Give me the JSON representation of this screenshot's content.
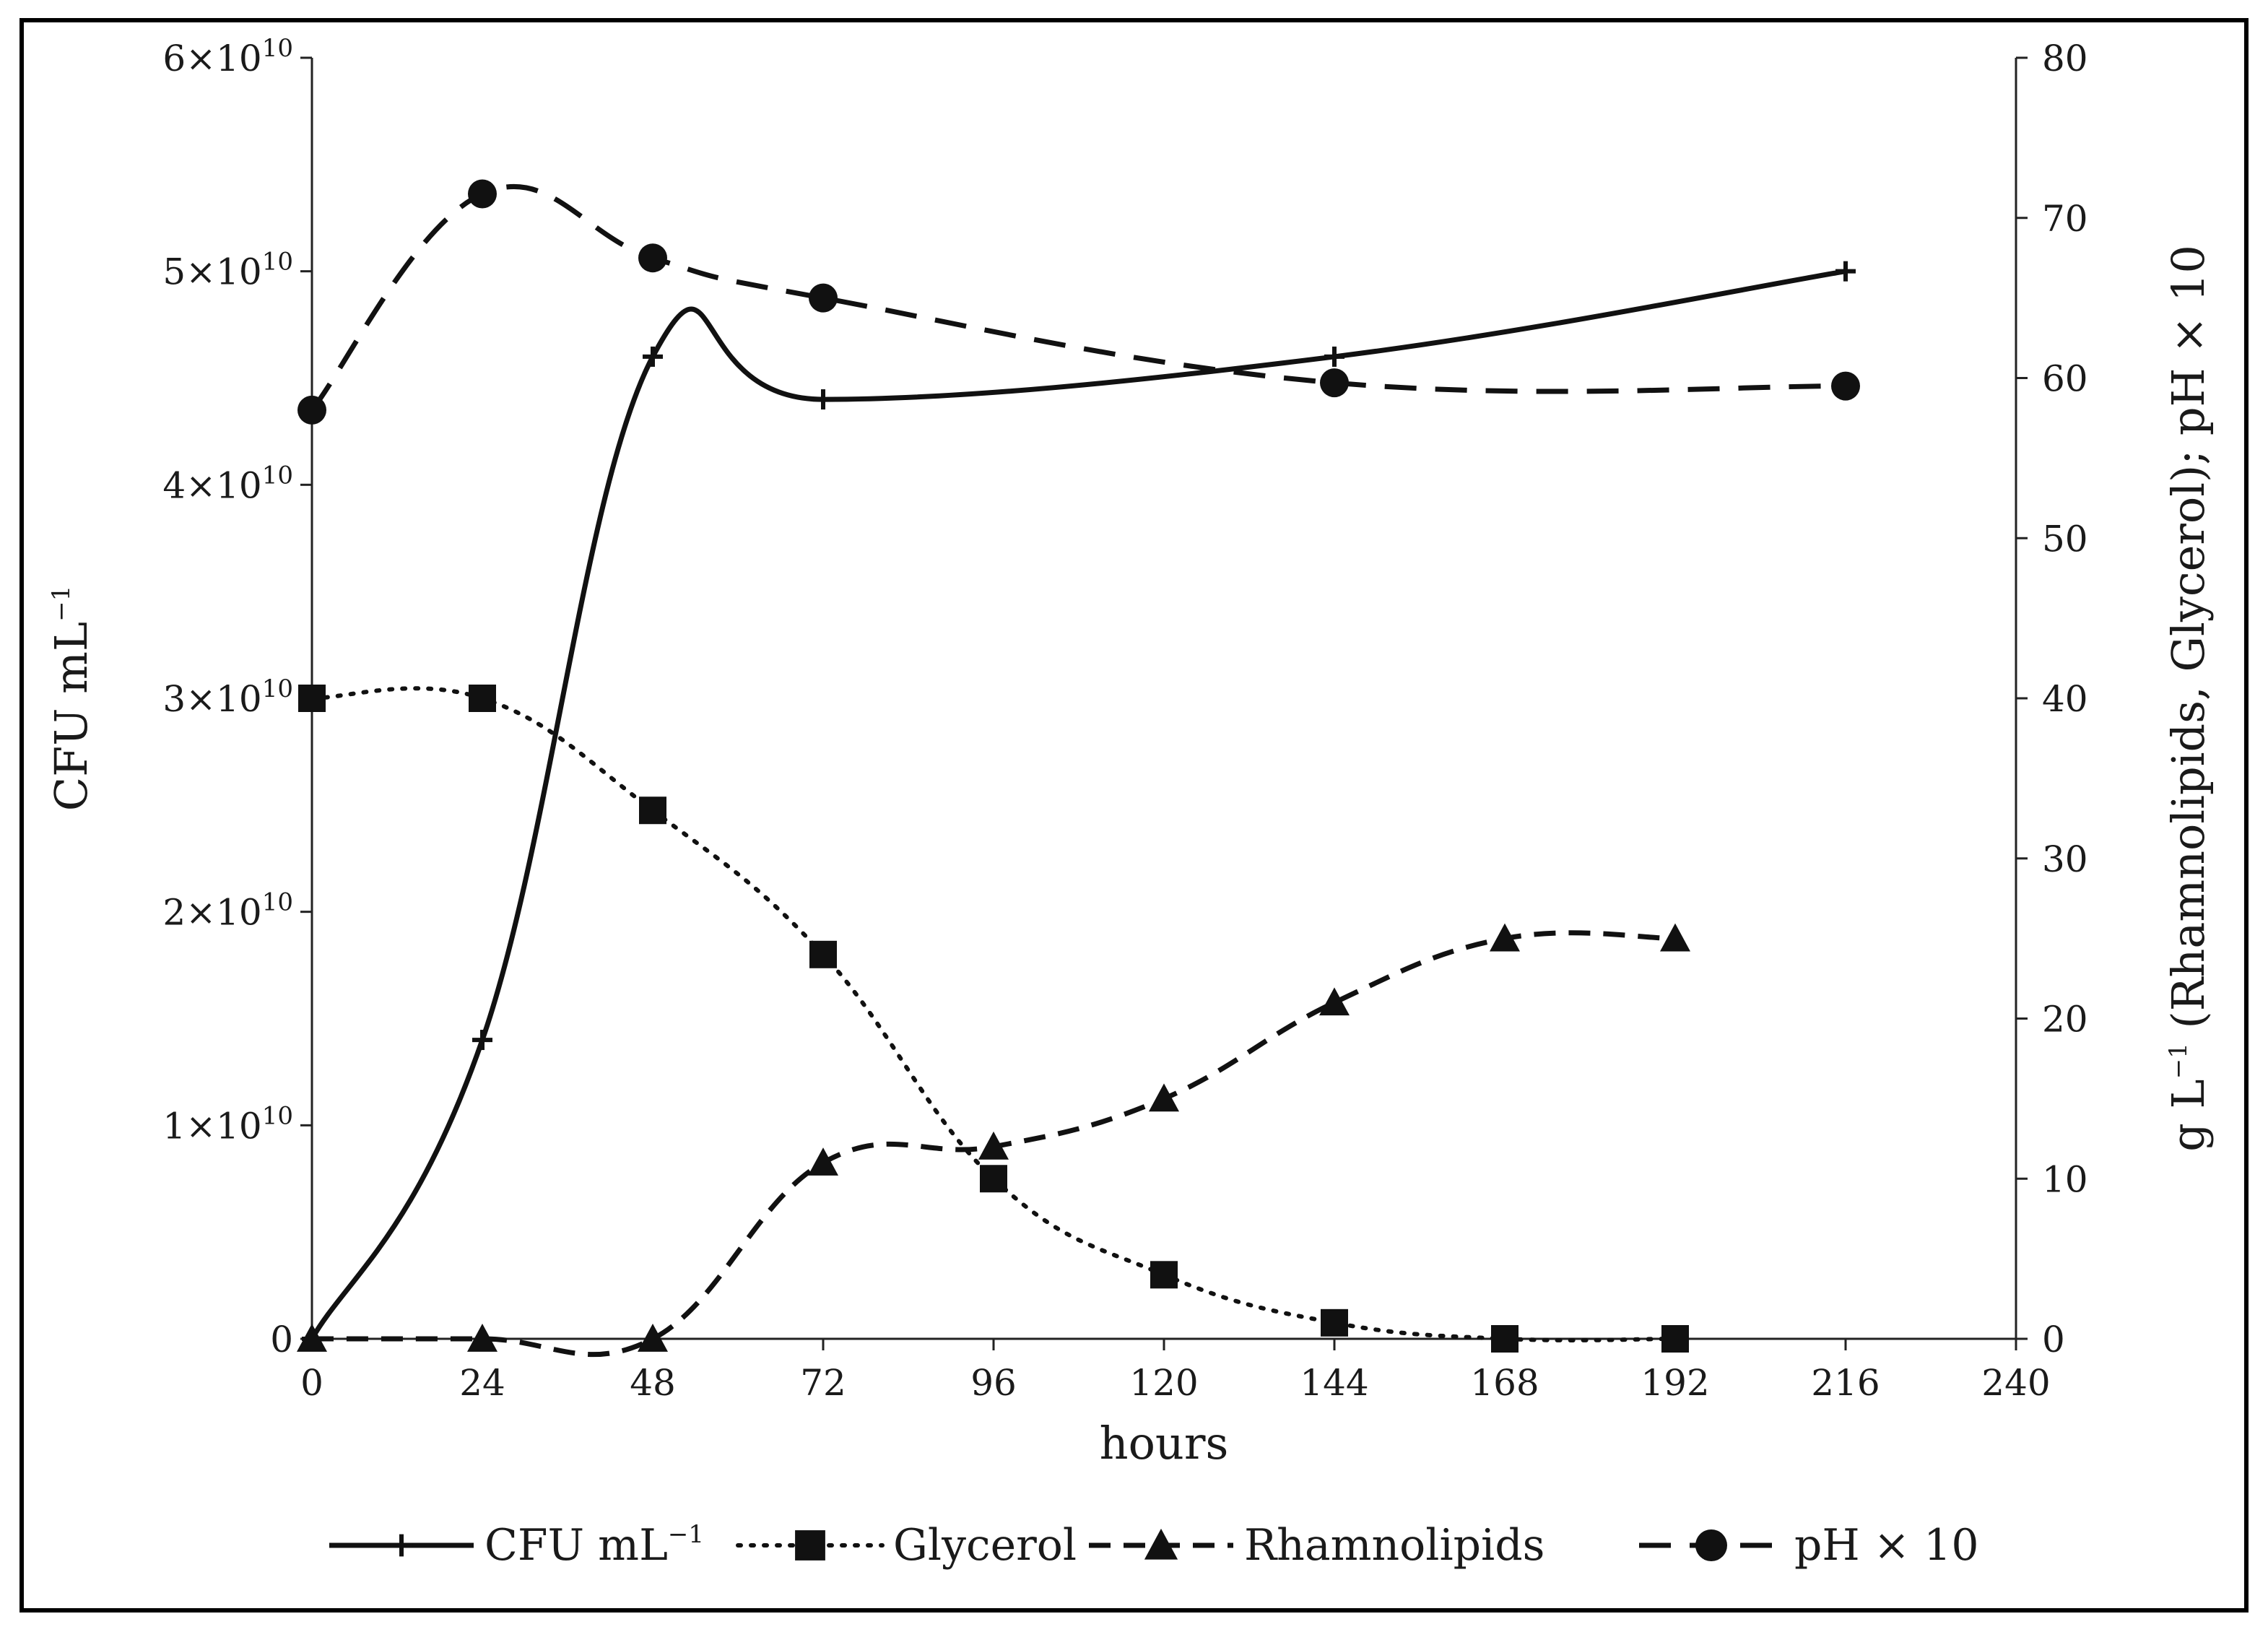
{
  "chart_data": {
    "type": "line",
    "x": [
      0,
      24,
      48,
      72,
      96,
      120,
      144,
      168,
      192,
      216
    ],
    "xlabel": "hours",
    "xlim": [
      0,
      240
    ],
    "xticks": [
      0,
      24,
      48,
      72,
      96,
      120,
      144,
      168,
      192,
      216,
      240
    ],
    "xtick_labels": [
      "0",
      "24",
      "48",
      "72",
      "96",
      "120",
      "144",
      "168",
      "192",
      "216",
      "240"
    ],
    "ylabel_left": "CFU mL",
    "ylabel_left_sup": "−1",
    "ylim_left": [
      0,
      60000000000.0
    ],
    "yticks_left": [
      {
        "mant": "0",
        "exp": ""
      },
      {
        "mant": "1×10",
        "exp": "10"
      },
      {
        "mant": "2×10",
        "exp": "10"
      },
      {
        "mant": "3×10",
        "exp": "10"
      },
      {
        "mant": "4×10",
        "exp": "10"
      },
      {
        "mant": "5×10",
        "exp": "10"
      },
      {
        "mant": "6×10",
        "exp": "10"
      }
    ],
    "ylabel_right_parts": [
      "g L",
      "−1",
      " (Rhamnolipids, Glycerol); pH × 10"
    ],
    "ylim_right": [
      0,
      80
    ],
    "yticks_right": [
      "0",
      "10",
      "20",
      "30",
      "40",
      "50",
      "60",
      "70",
      "80"
    ],
    "series": [
      {
        "name": "CFU mL",
        "name_sup": "−1",
        "axis": "left",
        "marker": "plus",
        "style": "solid",
        "x": [
          0,
          24,
          48,
          72,
          144,
          216
        ],
        "values": [
          0,
          14000000000.0,
          46000000000.0,
          44000000000.0,
          46000000000.0,
          50000000000.0
        ]
      },
      {
        "name": "Glycerol",
        "name_sup": "",
        "axis": "right",
        "marker": "square",
        "style": "dotted",
        "x": [
          0,
          24,
          48,
          72,
          96,
          120,
          144,
          168,
          192
        ],
        "values": [
          40,
          40,
          33,
          24,
          10,
          4,
          1,
          0,
          0
        ]
      },
      {
        "name": "Rhamnolipids",
        "name_sup": "",
        "axis": "right",
        "marker": "triangle",
        "style": "dashed",
        "x": [
          0,
          24,
          48,
          72,
          96,
          120,
          144,
          168,
          192
        ],
        "values": [
          0,
          0,
          0,
          11,
          12,
          15,
          21,
          25,
          25
        ]
      },
      {
        "name": "pH × 10",
        "name_sup": "",
        "axis": "right",
        "marker": "circle",
        "style": "longdash",
        "x": [
          0,
          24,
          48,
          72,
          144,
          216
        ],
        "values": [
          58,
          71.5,
          67.5,
          65,
          59.7,
          59.5
        ]
      }
    ],
    "legend_position": "bottom",
    "grid": false,
    "colors": {
      "line": "#111111",
      "axis": "#222222",
      "frame": "#000000",
      "background": "#ffffff"
    }
  }
}
